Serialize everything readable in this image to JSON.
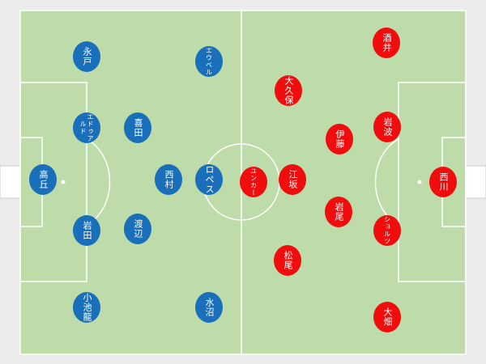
{
  "colors": {
    "pitch": "#bedcaa",
    "lines": "#ffffff",
    "home": "#1a6fba",
    "away": "#ef0d0d"
  },
  "home": [
    {
      "name": "永戸"
    },
    {
      "name": "エウベル"
    },
    {
      "name": "エドゥアルド"
    },
    {
      "name": "喜田"
    },
    {
      "name": "高丘"
    },
    {
      "name": "西村"
    },
    {
      "name": "ロペス"
    },
    {
      "name": "岩田"
    },
    {
      "name": "渡辺"
    },
    {
      "name": "小池龍"
    },
    {
      "name": "水沼"
    }
  ],
  "away": [
    {
      "name": "酒井"
    },
    {
      "name": "大久保"
    },
    {
      "name": "岩波"
    },
    {
      "name": "伊藤"
    },
    {
      "name": "ユンカー"
    },
    {
      "name": "江坂"
    },
    {
      "name": "西川"
    },
    {
      "name": "岩尾"
    },
    {
      "name": "ショルツ"
    },
    {
      "name": "松尾"
    },
    {
      "name": "大畑"
    }
  ]
}
